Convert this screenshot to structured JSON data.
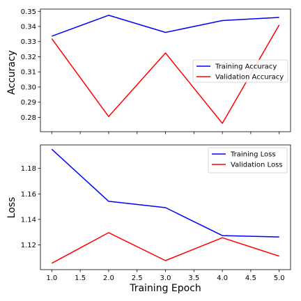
{
  "chart_data": [
    {
      "type": "line",
      "ylabel": "Accuracy",
      "xlabel": "",
      "x": [
        1,
        2,
        3,
        4,
        5
      ],
      "xlim": [
        0.8,
        5.2
      ],
      "ylim": [
        0.2705,
        0.3515
      ],
      "xticks": [
        "1.0",
        "1.5",
        "2.0",
        "2.5",
        "3.0",
        "3.5",
        "4.0",
        "4.5",
        "5.0"
      ],
      "show_xtick_labels": false,
      "yticks": [
        "0.28",
        "0.29",
        "0.30",
        "0.31",
        "0.32",
        "0.33",
        "0.34",
        "0.35"
      ],
      "grid": false,
      "legend_position": "center-right",
      "series": [
        {
          "name": "Training Accuracy",
          "color": "#0000ff",
          "values": [
            0.3336,
            0.3474,
            0.3361,
            0.3439,
            0.346
          ]
        },
        {
          "name": "Validation Accuracy",
          "color": "#ff0000",
          "values": [
            0.332,
            0.2805,
            0.3225,
            0.276,
            0.341
          ]
        }
      ]
    },
    {
      "type": "line",
      "ylabel": "Loss",
      "xlabel": "Training Epoch",
      "x": [
        1,
        2,
        3,
        4,
        5
      ],
      "xlim": [
        0.8,
        5.2
      ],
      "ylim": [
        1.1006,
        1.1984
      ],
      "xticks": [
        "1.0",
        "1.5",
        "2.0",
        "2.5",
        "3.0",
        "3.5",
        "4.0",
        "4.5",
        "5.0"
      ],
      "show_xtick_labels": true,
      "yticks": [
        "1.12",
        "1.14",
        "1.16",
        "1.18"
      ],
      "grid": false,
      "legend_position": "top-right",
      "series": [
        {
          "name": "Training Loss",
          "color": "#0000ff",
          "values": [
            1.195,
            1.1542,
            1.1492,
            1.1273,
            1.1262
          ]
        },
        {
          "name": "Validation Loss",
          "color": "#ff0000",
          "values": [
            1.1056,
            1.1296,
            1.1077,
            1.1256,
            1.1112
          ]
        }
      ]
    }
  ]
}
